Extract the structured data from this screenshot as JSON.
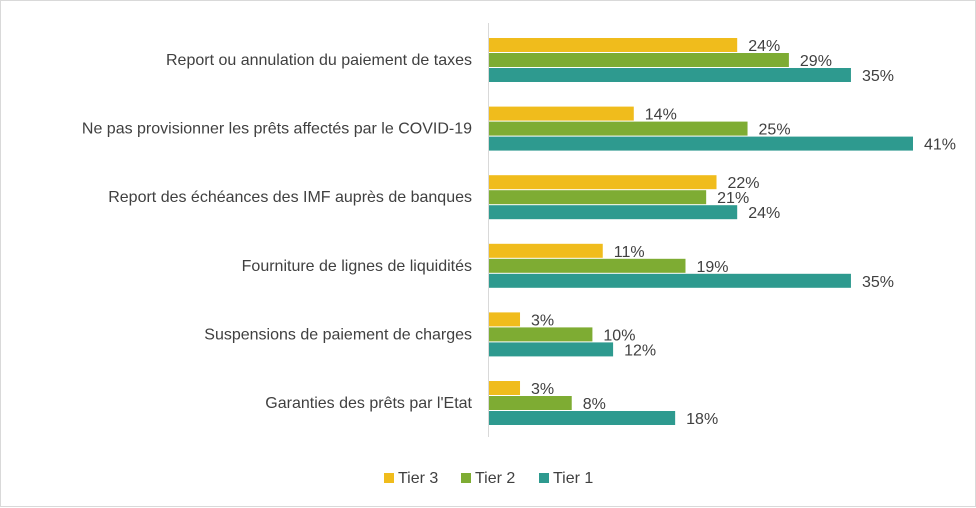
{
  "chart_data": {
    "type": "bar",
    "orientation": "horizontal",
    "categories": [
      "Report ou annulation du paiement de taxes",
      "Ne pas provisionner les prêts affectés par le COVID-19",
      "Report des échéances des IMF auprès de banques",
      "Fourniture de lignes de liquidités",
      "Suspensions de paiement de charges",
      "Garanties des prêts par l'Etat"
    ],
    "series": [
      {
        "name": "Tier 3",
        "color": "#f0bc1c",
        "values": [
          24,
          14,
          22,
          11,
          3,
          3
        ],
        "labels": [
          "24%",
          "14%",
          "22%",
          "11%",
          "3%",
          "3%"
        ]
      },
      {
        "name": "Tier 2",
        "color": "#7eac33",
        "values": [
          29,
          25,
          21,
          19,
          10,
          8
        ],
        "labels": [
          "29%",
          "25%",
          "21%",
          "19%",
          "10%",
          "8%"
        ]
      },
      {
        "name": "Tier 1",
        "color": "#2e9a8f",
        "values": [
          35,
          41,
          24,
          35,
          12,
          18
        ],
        "labels": [
          "35%",
          "41%",
          "24%",
          "35%",
          "12%",
          "18%"
        ]
      }
    ],
    "legend": [
      "Tier 3",
      "Tier 2",
      "Tier 1"
    ],
    "legend_position": "bottom",
    "xlim": [
      0,
      41
    ],
    "grid": false,
    "title": "",
    "xlabel": "",
    "ylabel": ""
  }
}
